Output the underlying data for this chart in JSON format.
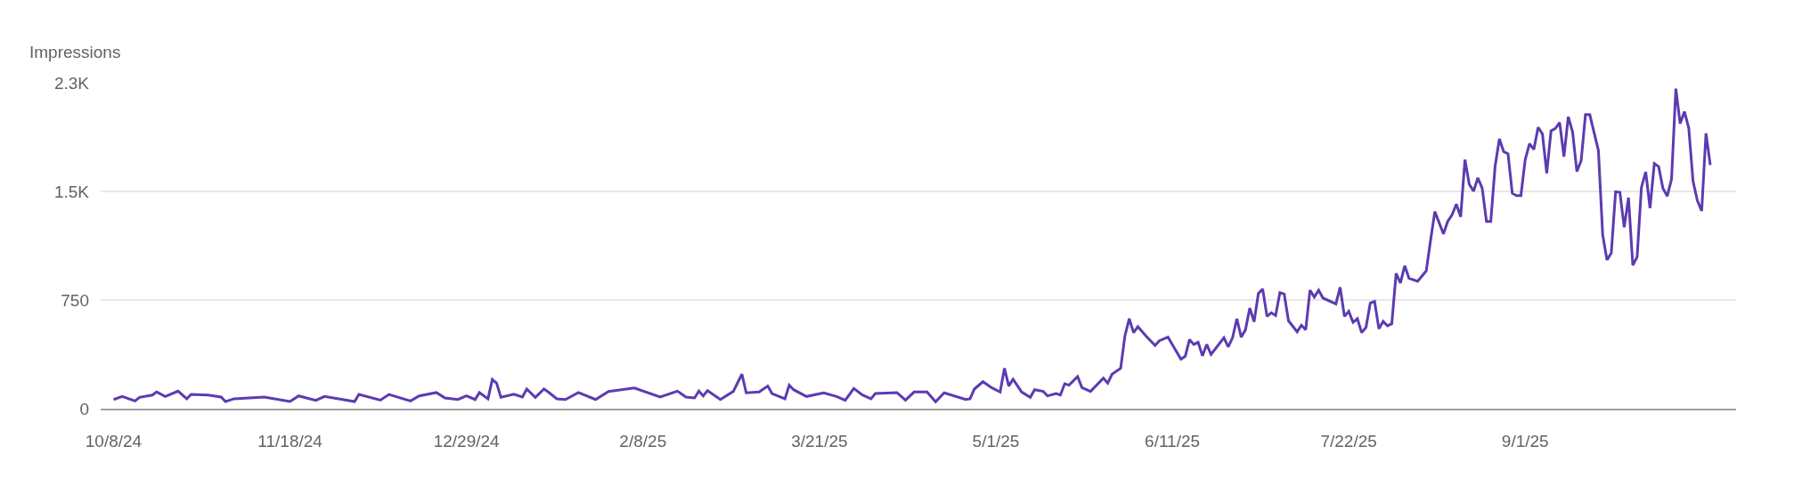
{
  "chart_data": {
    "type": "line",
    "ylabel": "Impressions",
    "x": [
      "2024-10-08",
      "2024-10-10",
      "2024-10-13",
      "2024-10-14",
      "2024-10-17",
      "2024-10-18",
      "2024-10-20",
      "2024-10-23",
      "2024-10-25",
      "2024-10-26",
      "2024-10-30",
      "2024-11-02",
      "2024-11-03",
      "2024-11-05",
      "2024-11-12",
      "2024-11-18",
      "2024-11-20",
      "2024-11-24",
      "2024-11-26",
      "2024-12-03",
      "2024-12-04",
      "2024-12-09",
      "2024-12-11",
      "2024-12-16",
      "2024-12-18",
      "2024-12-22",
      "2024-12-24",
      "2024-12-27",
      "2024-12-29",
      "2024-12-31",
      "2025-01-01",
      "2025-01-03",
      "2025-01-04",
      "2025-01-05",
      "2025-01-06",
      "2025-01-09",
      "2025-01-11",
      "2025-01-12",
      "2025-01-14",
      "2025-01-16",
      "2025-01-17",
      "2025-01-19",
      "2025-01-21",
      "2025-01-24",
      "2025-01-28",
      "2025-01-31",
      "2025-02-06",
      "2025-02-12",
      "2025-02-16",
      "2025-02-18",
      "2025-02-20",
      "2025-02-21",
      "2025-02-22",
      "2025-02-23",
      "2025-02-26",
      "2025-03-01",
      "2025-03-03",
      "2025-03-04",
      "2025-03-07",
      "2025-03-09",
      "2025-03-10",
      "2025-03-13",
      "2025-03-14",
      "2025-03-15",
      "2025-03-18",
      "2025-03-22",
      "2025-03-25",
      "2025-03-27",
      "2025-03-29",
      "2025-03-31",
      "2025-04-02",
      "2025-04-03",
      "2025-04-08",
      "2025-04-10",
      "2025-04-12",
      "2025-04-15",
      "2025-04-17",
      "2025-04-19",
      "2025-04-24",
      "2025-04-25",
      "2025-04-26",
      "2025-04-28",
      "2025-04-30",
      "2025-05-02",
      "2025-05-03",
      "2025-05-04",
      "2025-05-05",
      "2025-05-07",
      "2025-05-09",
      "2025-05-10",
      "2025-05-12",
      "2025-05-13",
      "2025-05-15",
      "2025-05-16",
      "2025-05-17",
      "2025-05-18",
      "2025-05-20",
      "2025-05-21",
      "2025-05-23",
      "2025-05-26",
      "2025-05-27",
      "2025-05-28",
      "2025-05-30",
      "2025-05-31",
      "2025-06-01",
      "2025-06-02",
      "2025-06-03",
      "2025-06-05",
      "2025-06-07",
      "2025-06-08",
      "2025-06-10",
      "2025-06-11",
      "2025-06-13",
      "2025-06-14",
      "2025-06-15",
      "2025-06-16",
      "2025-06-17",
      "2025-06-18",
      "2025-06-19",
      "2025-06-20",
      "2025-06-23",
      "2025-06-24",
      "2025-06-25",
      "2025-06-26",
      "2025-06-27",
      "2025-06-28",
      "2025-06-29",
      "2025-06-30",
      "2025-07-01",
      "2025-07-02",
      "2025-07-03",
      "2025-07-04",
      "2025-07-05",
      "2025-07-06",
      "2025-07-07",
      "2025-07-08",
      "2025-07-10",
      "2025-07-11",
      "2025-07-12",
      "2025-07-13",
      "2025-07-14",
      "2025-07-15",
      "2025-07-16",
      "2025-07-19",
      "2025-07-20",
      "2025-07-21",
      "2025-07-22",
      "2025-07-23",
      "2025-07-24",
      "2025-07-25",
      "2025-07-26",
      "2025-07-27",
      "2025-07-28",
      "2025-07-29",
      "2025-07-30",
      "2025-07-31",
      "2025-08-01",
      "2025-08-02",
      "2025-08-03",
      "2025-08-04",
      "2025-08-05",
      "2025-08-07",
      "2025-08-09",
      "2025-08-10",
      "2025-08-11",
      "2025-08-13",
      "2025-08-14",
      "2025-08-15",
      "2025-08-16",
      "2025-08-17",
      "2025-08-18",
      "2025-08-19",
      "2025-08-20",
      "2025-08-21",
      "2025-08-22",
      "2025-08-23",
      "2025-08-24",
      "2025-08-25",
      "2025-08-26",
      "2025-08-27",
      "2025-08-28",
      "2025-08-29",
      "2025-08-30",
      "2025-08-31",
      "2025-09-01",
      "2025-09-02",
      "2025-09-03",
      "2025-09-04",
      "2025-09-05",
      "2025-09-06",
      "2025-09-07",
      "2025-09-08",
      "2025-09-09",
      "2025-09-10",
      "2025-09-11",
      "2025-09-12",
      "2025-09-13",
      "2025-09-14",
      "2025-09-15",
      "2025-09-16",
      "2025-09-18",
      "2025-09-19",
      "2025-09-20",
      "2025-09-21",
      "2025-09-22",
      "2025-09-23",
      "2025-09-24",
      "2025-09-25",
      "2025-09-26",
      "2025-09-27",
      "2025-09-28",
      "2025-09-29",
      "2025-09-30",
      "2025-10-01",
      "2025-10-02",
      "2025-10-03",
      "2025-10-04",
      "2025-10-05",
      "2025-10-06",
      "2025-10-07",
      "2025-10-08",
      "2025-10-09",
      "2025-10-10",
      "2025-10-11",
      "2025-10-12",
      "2025-10-13",
      "2025-10-14"
    ],
    "series": [
      {
        "color": "#5c3bb0",
        "values": [
          63,
          84,
          53,
          78,
          94,
          115,
          84,
          121,
          68,
          98,
          94,
          80,
          49,
          68,
          80,
          49,
          88,
          57,
          84,
          49,
          98,
          59,
          98,
          53,
          88,
          111,
          74,
          63,
          88,
          63,
          111,
          68,
          201,
          176,
          78,
          100,
          80,
          135,
          78,
          135,
          115,
          68,
          63,
          111,
          63,
          119,
          143,
          80,
          121,
          80,
          74,
          121,
          88,
          125,
          63,
          119,
          238,
          109,
          115,
          156,
          104,
          68,
          162,
          131,
          84,
          109,
          84,
          57,
          139,
          94,
          68,
          104,
          111,
          59,
          115,
          115,
          47,
          109,
          63,
          68,
          135,
          186,
          145,
          115,
          279,
          156,
          203,
          115,
          78,
          131,
          119,
          88,
          104,
          94,
          172,
          162,
          221,
          145,
          119,
          211,
          176,
          238,
          279,
          504,
          621,
          525,
          566,
          498,
          436,
          469,
          494,
          443,
          342,
          361,
          477,
          443,
          459,
          365,
          443,
          375,
          490,
          426,
          490,
          621,
          494,
          545,
          695,
          600,
          795,
          826,
          637,
          662,
          643,
          801,
          791,
          607,
          531,
          576,
          545,
          818,
          771,
          818,
          764,
          723,
          838,
          637,
          672,
          596,
          621,
          525,
          561,
          729,
          740,
          551,
          602,
          572,
          586,
          934,
          867,
          986,
          900,
          879,
          951,
          1160,
          1361,
          1207,
          1293,
          1338,
          1412,
          1324,
          1719,
          1549,
          1502,
          1594,
          1522,
          1293,
          1293,
          1672,
          1863,
          1774,
          1760,
          1487,
          1471,
          1471,
          1719,
          1830,
          1789,
          1943,
          1897,
          1625,
          1918,
          1934,
          1975,
          1740,
          2016,
          1912,
          1637,
          1713,
          2030,
          2030,
          1784,
          1201,
          1027,
          1074,
          1498,
          1494,
          1252,
          1457,
          990,
          1047,
          1528,
          1635,
          1385,
          1693,
          1672,
          1522,
          1467,
          1586,
          2209,
          1969,
          2051,
          1938,
          1570,
          1436,
          1365,
          1901,
          1682
        ]
      }
    ],
    "xlim": [
      "2024-10-05",
      "2025-10-20"
    ],
    "xticks": [
      {
        "value": "2024-10-08",
        "label": "10/8/24"
      },
      {
        "value": "2024-11-18",
        "label": "11/18/24"
      },
      {
        "value": "2024-12-29",
        "label": "12/29/24"
      },
      {
        "value": "2025-02-08",
        "label": "2/8/25"
      },
      {
        "value": "2025-03-21",
        "label": "3/21/25"
      },
      {
        "value": "2025-05-01",
        "label": "5/1/25"
      },
      {
        "value": "2025-06-11",
        "label": "6/11/25"
      },
      {
        "value": "2025-07-22",
        "label": "7/22/25"
      },
      {
        "value": "2025-09-01",
        "label": "9/1/25"
      }
    ],
    "ylim": [
      0,
      2250
    ],
    "yticks": [
      0,
      750,
      {
        "value": 1500,
        "label": "1.5K"
      },
      {
        "value": 2250,
        "label": "2.3K"
      }
    ],
    "grid": "y",
    "marker": "none",
    "line_style": "solid"
  }
}
